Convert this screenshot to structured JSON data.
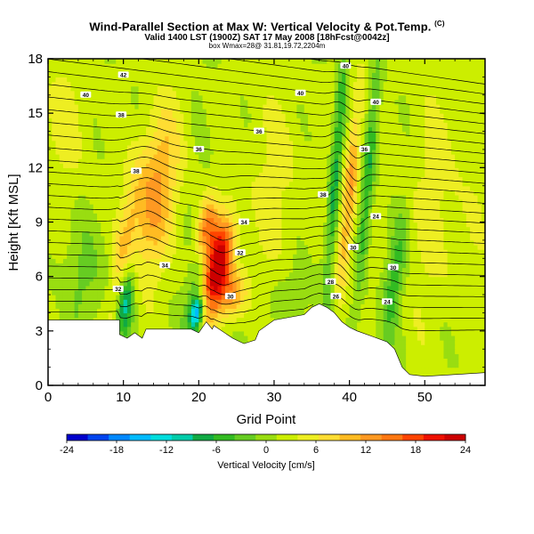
{
  "header": {
    "title": "Wind-Parallel Section at Max W: Vertical Velocity & Pot.Temp.",
    "title_mark": "(C)",
    "subtitle": "Valid 1400 LST (1900Z) SAT 17 May 2008 [18hFcst@0042z]",
    "subtitle2": "box Wmax=28@ 31.81,19.72,2204m"
  },
  "chart_data": {
    "type": "heatmap",
    "xlabel": "Grid Point",
    "ylabel": "Height [Kft MSL]",
    "xlim": [
      0,
      58
    ],
    "ylim": [
      0,
      18
    ],
    "x_ticks": [
      0,
      10,
      20,
      30,
      40,
      50
    ],
    "y_ticks": [
      0,
      3,
      6,
      9,
      12,
      15,
      18
    ],
    "terrain": [
      [
        0,
        3.6
      ],
      [
        9.5,
        3.6
      ],
      [
        9.5,
        2.8
      ],
      [
        10.5,
        2.6
      ],
      [
        11.5,
        2.9
      ],
      [
        12.5,
        2.6
      ],
      [
        13,
        3.1
      ],
      [
        19,
        3.1
      ],
      [
        20,
        2.9
      ],
      [
        21,
        3.5
      ],
      [
        21.8,
        3.1
      ],
      [
        22,
        3.3
      ],
      [
        24.5,
        2.6
      ],
      [
        25.5,
        2.4
      ],
      [
        26,
        2.3
      ],
      [
        27.5,
        2.5
      ],
      [
        28,
        3.0
      ],
      [
        30,
        3.6
      ],
      [
        34,
        3.9
      ],
      [
        35,
        4.3
      ],
      [
        36,
        4.5
      ],
      [
        37,
        4.3
      ],
      [
        38,
        4.0
      ],
      [
        39,
        3.5
      ],
      [
        40,
        3.2
      ],
      [
        41,
        3.0
      ],
      [
        43,
        2.7
      ],
      [
        45,
        2.4
      ],
      [
        46,
        2.0
      ],
      [
        47,
        1.0
      ],
      [
        48,
        0.6
      ],
      [
        50,
        0.5
      ],
      [
        54,
        0.6
      ],
      [
        58,
        0.7
      ]
    ],
    "velocity_features": [
      {
        "x": 9.8,
        "y": 6.5,
        "w": 7,
        "sx": 0.9,
        "sy": 3.0,
        "tilt": 0.3
      },
      {
        "x": 10.2,
        "y": 4.7,
        "w": -14,
        "sx": 0.8,
        "sy": 1.4,
        "tilt": 0.2
      },
      {
        "x": 14.0,
        "y": 10.5,
        "w": 11,
        "sx": 2.1,
        "sy": 3.2,
        "tilt": 0.3
      },
      {
        "x": 19.8,
        "y": 4.0,
        "w": -19,
        "sx": 0.6,
        "sy": 0.7,
        "tilt": 0.3
      },
      {
        "x": 19.5,
        "y": 5.5,
        "w": -5,
        "sx": 0.7,
        "sy": 2.0,
        "tilt": 0.5
      },
      {
        "x": 22.5,
        "y": 6.5,
        "w": 23,
        "sx": 1.2,
        "sy": 1.8,
        "tilt": 0.4
      },
      {
        "x": 21.0,
        "y": 8.6,
        "w": 13,
        "sx": 0.9,
        "sy": 1.2,
        "tilt": 0.3
      },
      {
        "x": 24.5,
        "y": 5.0,
        "w": 10,
        "sx": 1.3,
        "sy": 1.0,
        "tilt": 0.2
      },
      {
        "x": 38.2,
        "y": 12.0,
        "w": -9,
        "sx": 0.55,
        "sy": 5.2,
        "tilt": 0.18
      },
      {
        "x": 40.0,
        "y": 10.5,
        "w": 11,
        "sx": 0.7,
        "sy": 4.2,
        "tilt": 0.22
      },
      {
        "x": 42.5,
        "y": 11.5,
        "w": -8,
        "sx": 0.6,
        "sy": 4.5,
        "tilt": 0.2
      },
      {
        "x": 46.0,
        "y": 6.0,
        "w": -7,
        "sx": 0.9,
        "sy": 2.5,
        "tilt": 0.3
      },
      {
        "x": 2.0,
        "y": 14.5,
        "w": 3,
        "sx": 3.0,
        "sy": 3.0,
        "tilt": 0.0
      },
      {
        "x": 30.0,
        "y": 11.0,
        "w": 3,
        "sx": 3.5,
        "sy": 4.0,
        "tilt": 0.0
      },
      {
        "x": 52.0,
        "y": 10.0,
        "w": 3,
        "sx": 4.0,
        "sy": 5.0,
        "tilt": 0.0
      },
      {
        "x": 5.0,
        "y": 6.0,
        "w": -3,
        "sx": 2.5,
        "sy": 2.0,
        "tilt": 0.0
      },
      {
        "x": 33.0,
        "y": 5.0,
        "w": -2,
        "sx": 3.0,
        "sy": 1.5,
        "tilt": 0.0
      }
    ],
    "colorbar": {
      "title": "Vertical Velocity [cm/s]",
      "ticks": [
        -24,
        -18,
        -12,
        -6,
        0,
        6,
        12,
        18,
        24
      ],
      "colors": [
        "#0000cc",
        "#0044ee",
        "#0088ff",
        "#00bbff",
        "#00dddd",
        "#00ccaa",
        "#11aa44",
        "#33bb22",
        "#66cc22",
        "#99dd11",
        "#ccee00",
        "#eeee22",
        "#ffdd33",
        "#ffbb22",
        "#ff9922",
        "#ff7711",
        "#ff4400",
        "#ee1100",
        "#cc0000"
      ]
    },
    "theta_contours": [
      {
        "label": "42",
        "lx": 10,
        "ly": 17.1
      },
      {
        "label": "40",
        "lx": 5,
        "ly": 16.0
      },
      {
        "label": "38",
        "lx": 9.7,
        "ly": 14.9
      },
      {
        "label": "36",
        "lx": 28,
        "ly": 14.0
      },
      {
        "label": "36",
        "lx": 20,
        "ly": 13.0
      },
      {
        "label": "38",
        "lx": 11.7,
        "ly": 11.8
      },
      {
        "label": "34",
        "lx": 26,
        "ly": 9.0
      },
      {
        "label": "34",
        "lx": 15.5,
        "ly": 6.6
      },
      {
        "label": "32",
        "lx": 9.3,
        "ly": 5.3
      },
      {
        "label": "30",
        "lx": 24.2,
        "ly": 4.9
      },
      {
        "label": "32",
        "lx": 25.5,
        "ly": 7.3
      },
      {
        "label": "40",
        "lx": 39.5,
        "ly": 17.6
      },
      {
        "label": "40",
        "lx": 33.5,
        "ly": 16.1
      },
      {
        "label": "40",
        "lx": 43.5,
        "ly": 15.6
      },
      {
        "label": "36",
        "lx": 42.0,
        "ly": 13.0
      },
      {
        "label": "38",
        "lx": 36.5,
        "ly": 10.5
      },
      {
        "label": "24",
        "lx": 43.5,
        "ly": 9.3
      },
      {
        "label": "30",
        "lx": 40.5,
        "ly": 7.6
      },
      {
        "label": "30",
        "lx": 45.8,
        "ly": 6.5
      },
      {
        "label": "28",
        "lx": 37.5,
        "ly": 5.7
      },
      {
        "label": "26",
        "lx": 38.2,
        "ly": 4.9
      },
      {
        "label": "24",
        "lx": 45,
        "ly": 4.6
      }
    ]
  }
}
